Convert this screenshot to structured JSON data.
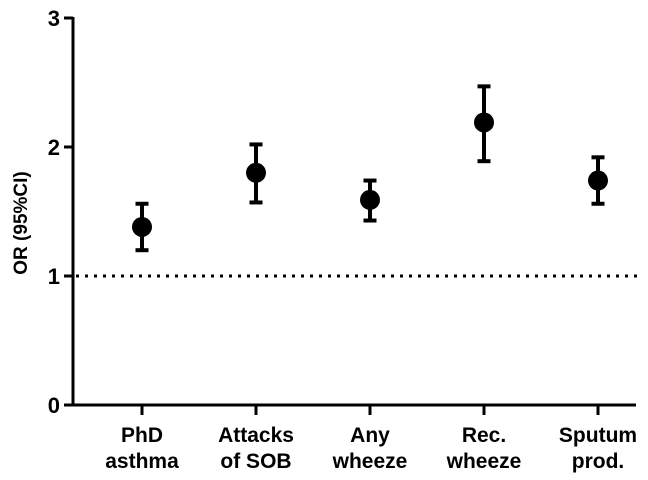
{
  "chart_data": {
    "type": "scatter",
    "title": "",
    "xlabel": "",
    "ylabel": "OR (95%CI)",
    "ylim": [
      0,
      3
    ],
    "yticks": [
      "0",
      "1",
      "2",
      "3"
    ],
    "reference_line": 1,
    "grid": false,
    "categories": [
      [
        "PhD",
        "asthma"
      ],
      [
        "Attacks",
        "of SOB"
      ],
      [
        "Any",
        "wheeze"
      ],
      [
        "Rec.",
        "wheeze"
      ],
      [
        "Sputum",
        "prod."
      ]
    ],
    "values": [
      1.38,
      1.8,
      1.59,
      2.19,
      1.74
    ],
    "ci_lower": [
      1.2,
      1.57,
      1.43,
      1.89,
      1.56
    ],
    "ci_upper": [
      1.56,
      2.02,
      1.74,
      2.47,
      1.92
    ],
    "marker_color": "#000000"
  }
}
